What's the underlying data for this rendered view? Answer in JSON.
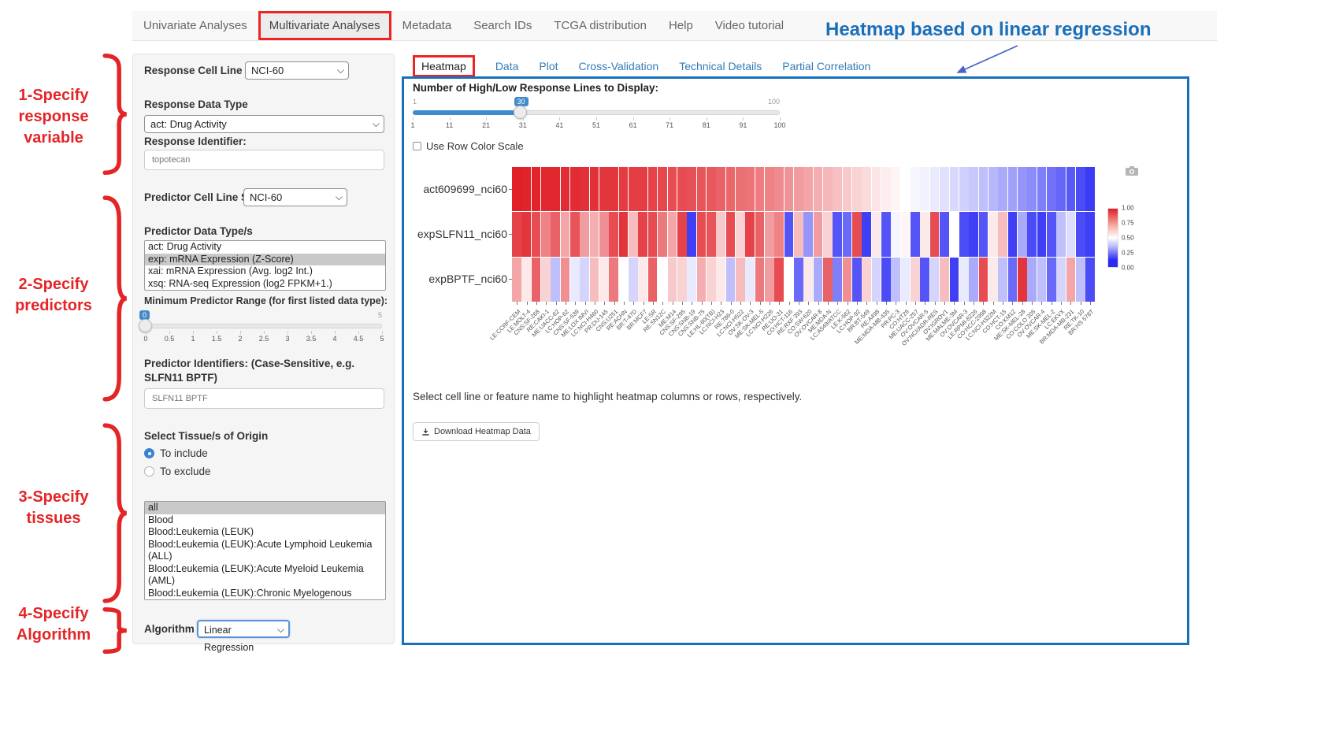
{
  "nav": {
    "items": [
      "Univariate Analyses",
      "Multivariate Analyses",
      "Metadata",
      "Search IDs",
      "TCGA distribution",
      "Help",
      "Video tutorial"
    ],
    "active": "Multivariate Analyses"
  },
  "annotations": {
    "heading": "Heatmap based on linear regression",
    "steps": [
      "1-Specify\nresponse\nvariable",
      "2-Specify\npredictors",
      "3-Specify\ntissues",
      "4-Specify\nAlgorithm"
    ]
  },
  "sidebar": {
    "response_cell_line_set": {
      "label": "Response Cell Line Set",
      "value": "NCI-60"
    },
    "response_data_type": {
      "label": "Response Data Type",
      "value": "act: Drug Activity"
    },
    "response_identifier": {
      "label": "Response Identifier:",
      "value": "topotecan"
    },
    "predictor_cell_line_set": {
      "label": "Predictor Cell Line Set",
      "value": "NCI-60"
    },
    "predictor_data_types": {
      "label": "Predictor Data Type/s",
      "options": [
        "act: Drug Activity",
        "exp: mRNA Expression (Z-Score)",
        "xai: mRNA Expression (Avg. log2 Int.)",
        "xsq: RNA-seq Expression (log2 FPKM+1.)"
      ],
      "selected": "exp: mRNA Expression (Z-Score)"
    },
    "min_predictor_range": {
      "label": "Minimum Predictor Range (for first listed data type):",
      "value": 0,
      "min": 0,
      "max": 5,
      "max_label": "5",
      "ticks": [
        "0",
        "0.5",
        "1",
        "1.5",
        "2",
        "2.5",
        "3",
        "3.5",
        "4",
        "4.5",
        "5"
      ]
    },
    "predictor_identifiers": {
      "label": "Predictor Identifiers: (Case-Sensitive, e.g. SLFN11 BPTF)",
      "value": "SLFN11 BPTF"
    },
    "tissue": {
      "label": "Select Tissue/s of Origin",
      "radios": [
        "To include",
        "To exclude"
      ],
      "selected_radio": "To include",
      "options": [
        "all",
        "Blood",
        "Blood:Leukemia (LEUK)",
        "Blood:Leukemia (LEUK):Acute Lymphoid Leukemia (ALL)",
        "Blood:Leukemia (LEUK):Acute Myeloid Leukemia (AML)",
        "Blood:Leukemia (LEUK):Chronic Myelogenous Leukemia (CML)"
      ],
      "selected": "all"
    },
    "algorithm": {
      "label": "Algorithm",
      "value": "Linear Regression"
    }
  },
  "main": {
    "tabs": [
      "Heatmap",
      "Data",
      "Plot",
      "Cross-Validation",
      "Technical Details",
      "Partial Correlation"
    ],
    "active_tab": "Heatmap",
    "lines_slider": {
      "label": "Number of High/Low Response Lines to Display:",
      "value": 30,
      "min": 1,
      "max": 100,
      "min_label": "1",
      "max_label": "100",
      "ticks": [
        "1",
        "11",
        "21",
        "31",
        "41",
        "51",
        "61",
        "71",
        "81",
        "91",
        "100"
      ]
    },
    "row_scale_checkbox": "Use Row Color Scale",
    "row_scale_checked": false,
    "help_text": "Select cell line or feature name to highlight heatmap columns or rows, respectively.",
    "download_button": "Download Heatmap Data"
  },
  "colors": {
    "accent": "#428bca",
    "panel_border": "#1a70b8",
    "annotation_red": "#e42527",
    "annotation_blue": "#1a6fba",
    "link_blue": "#337ab7",
    "heat_high": "#e01f26",
    "heat_mid": "#ffffff",
    "heat_low": "#2a2af5"
  },
  "chart_data": {
    "type": "heatmap",
    "rows": [
      "act609699_nci60",
      "expSLFN11_nci60",
      "expBPTF_nci60"
    ],
    "columns": [
      "LE:CCRF-CEM",
      "LE:MOLT-4",
      "CNS:SF-268",
      "RE:CAKI-1",
      "ME:UACC-62",
      "LC:HOP-62",
      "CNS:SF-539",
      "ME:LOX IMVI",
      "LC:NCI-H460",
      "PR:DU-145",
      "CNS:U251",
      "RE:ACHN",
      "BR:T-47D",
      "BR:MCF7",
      "LE:SR",
      "RE:SN12C",
      "ME:M14",
      "CNS:SF-295",
      "CNS:SNB-19",
      "CNS:SNB-75",
      "LE:HL-60(TB)",
      "LC:NCI-H23",
      "RE:786-0",
      "LC:NCI-H522",
      "OV:SK-OV-3",
      "ME:SK-MEL-5",
      "LC:NCI-H226",
      "RE:UO-31",
      "CO:HCT-116",
      "RE:RXF 393",
      "CO:SW-620",
      "OV:OVCAR-8",
      "ME:MDA-N",
      "LC:A549/ATCC",
      "LE:K-562",
      "LC:HOP-92",
      "BR:BT-549",
      "RE:A498",
      "ME:MDA-MB-435",
      "PR:PC-3",
      "CO:HT29",
      "ME:UACC-257",
      "OV:OVCAR-5",
      "OV:NCI/ADR-RES",
      "OV:IGROV1",
      "ME:MALME-3M",
      "OV:OVCAR-3",
      "LE:RPMI-8226",
      "CO:HCC-2998",
      "LC:NCI-H322M",
      "CO:HCT-15",
      "CO:KM12",
      "ME:SK-MEL-28",
      "CO:COLO 205",
      "OV:OVCAR-4",
      "ME:SK-MEL-2",
      "LC:EKVX",
      "BR:MDA-MB-231",
      "RE:TK-10",
      "BR:HS 578T"
    ],
    "values": [
      [
        1.0,
        0.99,
        0.99,
        0.98,
        0.98,
        0.97,
        0.97,
        0.96,
        0.96,
        0.95,
        0.95,
        0.94,
        0.93,
        0.93,
        0.92,
        0.91,
        0.9,
        0.9,
        0.89,
        0.88,
        0.87,
        0.85,
        0.84,
        0.82,
        0.81,
        0.79,
        0.78,
        0.76,
        0.74,
        0.72,
        0.7,
        0.68,
        0.66,
        0.64,
        0.62,
        0.6,
        0.58,
        0.56,
        0.54,
        0.52,
        0.5,
        0.48,
        0.47,
        0.45,
        0.43,
        0.41,
        0.39,
        0.37,
        0.35,
        0.33,
        0.3,
        0.28,
        0.25,
        0.23,
        0.2,
        0.17,
        0.14,
        0.11,
        0.08,
        0.04
      ],
      [
        0.92,
        0.95,
        0.9,
        0.78,
        0.85,
        0.7,
        0.88,
        0.72,
        0.68,
        0.75,
        0.9,
        0.95,
        0.65,
        0.92,
        0.9,
        0.8,
        0.7,
        0.92,
        0.05,
        0.9,
        0.88,
        0.62,
        0.9,
        0.6,
        0.92,
        0.85,
        0.72,
        0.78,
        0.1,
        0.65,
        0.25,
        0.72,
        0.6,
        0.1,
        0.15,
        0.9,
        0.05,
        0.55,
        0.1,
        0.48,
        0.52,
        0.1,
        0.55,
        0.9,
        0.1,
        0.5,
        0.08,
        0.05,
        0.1,
        0.55,
        0.65,
        0.05,
        0.3,
        0.08,
        0.05,
        0.1,
        0.35,
        0.42,
        0.08,
        0.05
      ],
      [
        0.7,
        0.55,
        0.85,
        0.6,
        0.35,
        0.75,
        0.45,
        0.4,
        0.65,
        0.55,
        0.8,
        0.5,
        0.4,
        0.55,
        0.85,
        0.5,
        0.62,
        0.6,
        0.45,
        0.68,
        0.6,
        0.55,
        0.35,
        0.65,
        0.45,
        0.8,
        0.72,
        0.9,
        0.5,
        0.15,
        0.55,
        0.3,
        0.85,
        0.2,
        0.75,
        0.1,
        0.6,
        0.4,
        0.08,
        0.35,
        0.45,
        0.6,
        0.1,
        0.4,
        0.65,
        0.05,
        0.45,
        0.3,
        0.9,
        0.55,
        0.35,
        0.15,
        0.95,
        0.3,
        0.35,
        0.15,
        0.4,
        0.7,
        0.35,
        0.08
      ]
    ],
    "zlim": [
      0,
      1
    ],
    "colorbar_ticks": [
      "1.00",
      "0.75",
      "0.50",
      "0.25",
      "0.00"
    ],
    "legend_position": "right",
    "xlabel": "",
    "ylabel": "",
    "title": ""
  }
}
